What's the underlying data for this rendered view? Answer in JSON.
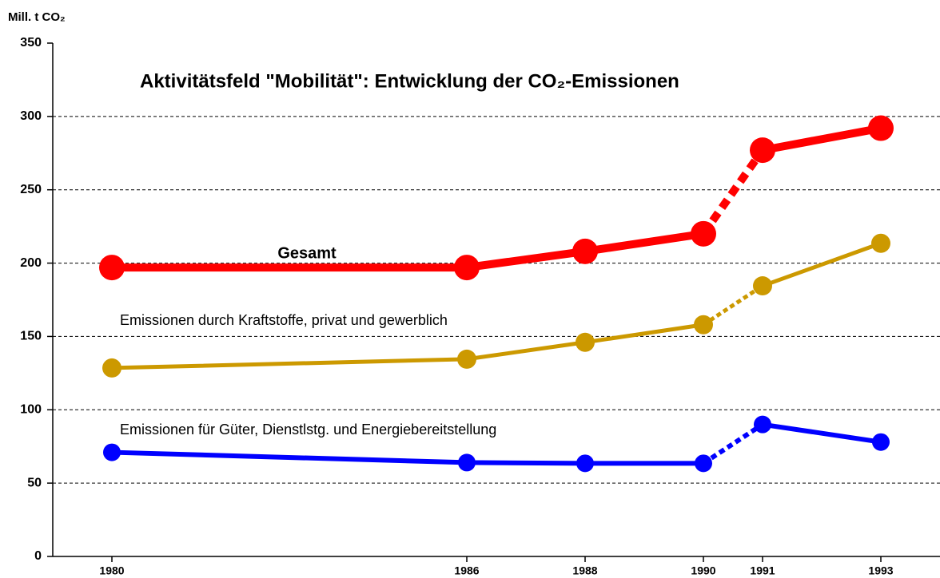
{
  "chart_data": {
    "type": "line",
    "title": "Aktivitätsfeld \"Mobilität\": Entwicklung der CO₂-Emissionen",
    "y_label": "Mill. t CO₂",
    "x": [
      1980,
      1986,
      1988,
      1990,
      1991,
      1993
    ],
    "xlim": [
      1979,
      1994
    ],
    "xticks": [
      1980,
      1986,
      1988,
      1990,
      1991,
      1993
    ],
    "ylim": [
      0,
      350
    ],
    "yticks": [
      0,
      50,
      100,
      150,
      200,
      250,
      300,
      350
    ],
    "grid": true,
    "dashed_x": [
      1990,
      1991
    ],
    "series": [
      {
        "name": "Gesamt",
        "color": "#ff0000",
        "values": [
          197,
          197,
          208,
          220,
          277,
          292
        ]
      },
      {
        "name": "Emissionen durch Kraftstoffe, privat und gewerblich",
        "color": "#cc9900",
        "values": [
          128.5,
          134.5,
          146,
          158,
          184.5,
          213.5
        ]
      },
      {
        "name": "Emissionen für Güter, Dienstlstg. und Energiebereitstellung",
        "color": "#0000ff",
        "values": [
          71,
          64,
          63.5,
          63.5,
          90,
          78
        ]
      }
    ]
  }
}
